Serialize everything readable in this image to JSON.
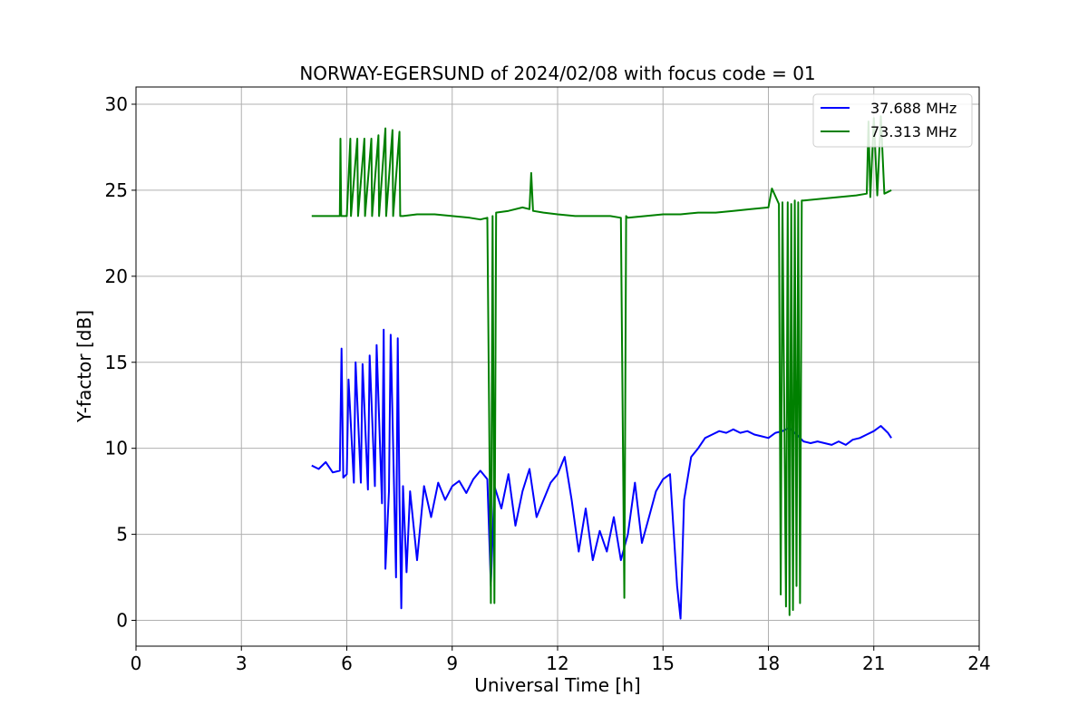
{
  "chart_data": {
    "type": "line",
    "title": "NORWAY-EGERSUND of 2024/02/08 with focus code = 01",
    "xlabel": "Universal Time [h]",
    "ylabel": "Y-factor [dB]",
    "xlim": [
      0,
      24
    ],
    "ylim": [
      -1.5,
      31
    ],
    "xticks": [
      0,
      3,
      6,
      9,
      12,
      15,
      18,
      21,
      24
    ],
    "yticks": [
      0,
      5,
      10,
      15,
      20,
      25,
      30
    ],
    "grid": true,
    "legend_position": "top-right",
    "series": [
      {
        "name": "37.688 MHz",
        "color": "#0000ff",
        "x": [
          5.0,
          5.2,
          5.4,
          5.6,
          5.8,
          5.85,
          5.9,
          6.0,
          6.05,
          6.2,
          6.25,
          6.4,
          6.45,
          6.6,
          6.65,
          6.8,
          6.85,
          7.0,
          7.05,
          7.1,
          7.2,
          7.25,
          7.4,
          7.45,
          7.5,
          7.55,
          7.6,
          7.7,
          7.8,
          8.0,
          8.2,
          8.4,
          8.6,
          8.8,
          9.0,
          9.2,
          9.4,
          9.6,
          9.8,
          10.0,
          10.1,
          10.2,
          10.4,
          10.6,
          10.8,
          11.0,
          11.2,
          11.4,
          11.6,
          11.8,
          12.0,
          12.2,
          12.4,
          12.6,
          12.8,
          13.0,
          13.2,
          13.4,
          13.6,
          13.8,
          14.0,
          14.2,
          14.4,
          14.6,
          14.8,
          15.0,
          15.2,
          15.4,
          15.5,
          15.6,
          15.8,
          16.0,
          16.2,
          16.4,
          16.6,
          16.8,
          17.0,
          17.2,
          17.4,
          17.6,
          17.8,
          18.0,
          18.2,
          18.4,
          18.6,
          18.8,
          19.0,
          19.2,
          19.4,
          19.6,
          19.8,
          20.0,
          20.2,
          20.4,
          20.6,
          20.8,
          21.0,
          21.2,
          21.4,
          21.5
        ],
        "y": [
          9.0,
          8.8,
          9.2,
          8.6,
          8.7,
          15.8,
          8.3,
          8.5,
          14.0,
          8.0,
          15.0,
          8.0,
          14.9,
          7.6,
          15.4,
          7.8,
          16.0,
          6.8,
          16.9,
          3.0,
          7.5,
          16.6,
          2.5,
          16.4,
          7.2,
          0.7,
          7.8,
          2.8,
          7.5,
          3.5,
          7.8,
          6.0,
          8.0,
          7.0,
          7.8,
          8.1,
          7.4,
          8.2,
          8.7,
          8.2,
          2.0,
          7.8,
          6.5,
          8.5,
          5.5,
          7.5,
          8.8,
          6.0,
          7.0,
          8.0,
          8.5,
          9.5,
          7.0,
          4.0,
          6.5,
          3.5,
          5.2,
          4.0,
          6.0,
          3.5,
          5.0,
          8.0,
          4.5,
          6.0,
          7.5,
          8.2,
          8.5,
          2.0,
          0.1,
          7.0,
          9.5,
          10.0,
          10.6,
          10.8,
          11.0,
          10.9,
          11.1,
          10.9,
          11.0,
          10.8,
          10.7,
          10.6,
          10.9,
          11.0,
          11.2,
          10.8,
          10.4,
          10.3,
          10.4,
          10.3,
          10.2,
          10.4,
          10.2,
          10.5,
          10.6,
          10.8,
          11.0,
          11.3,
          10.9,
          10.6
        ]
      },
      {
        "name": "73.313 MHz",
        "color": "#008000",
        "x": [
          5.0,
          5.5,
          5.8,
          5.82,
          5.84,
          6.0,
          6.1,
          6.12,
          6.3,
          6.32,
          6.5,
          6.52,
          6.7,
          6.72,
          6.9,
          6.92,
          7.1,
          7.12,
          7.3,
          7.32,
          7.5,
          7.52,
          7.6,
          8.0,
          8.5,
          9.0,
          9.5,
          9.8,
          10.0,
          10.1,
          10.15,
          10.2,
          10.25,
          10.6,
          11.0,
          11.2,
          11.25,
          11.3,
          11.6,
          12.0,
          12.5,
          13.0,
          13.5,
          13.8,
          13.9,
          13.95,
          14.0,
          14.5,
          15.0,
          15.5,
          16.0,
          16.5,
          17.0,
          17.5,
          18.0,
          18.1,
          18.3,
          18.35,
          18.4,
          18.5,
          18.55,
          18.6,
          18.65,
          18.7,
          18.75,
          18.8,
          18.85,
          18.9,
          18.95,
          19.0,
          19.5,
          20.0,
          20.5,
          20.8,
          20.85,
          20.9,
          21.0,
          21.1,
          21.2,
          21.3,
          21.4,
          21.5
        ],
        "y": [
          23.5,
          23.5,
          23.5,
          28.0,
          23.5,
          23.5,
          28.0,
          23.5,
          28.0,
          23.5,
          28.0,
          23.5,
          28.0,
          23.5,
          28.2,
          23.5,
          28.6,
          23.5,
          28.5,
          23.5,
          28.4,
          23.5,
          23.5,
          23.6,
          23.6,
          23.5,
          23.4,
          23.3,
          23.4,
          1.0,
          23.5,
          1.0,
          23.7,
          23.8,
          24.0,
          23.9,
          26.0,
          23.8,
          23.7,
          23.6,
          23.5,
          23.5,
          23.5,
          23.4,
          1.3,
          23.5,
          23.4,
          23.5,
          23.6,
          23.6,
          23.7,
          23.7,
          23.8,
          23.9,
          24.0,
          25.1,
          24.2,
          1.5,
          24.3,
          0.8,
          24.3,
          0.3,
          24.2,
          0.6,
          24.4,
          2.0,
          24.3,
          1.0,
          24.4,
          24.4,
          24.5,
          24.6,
          24.7,
          24.8,
          29.0,
          24.6,
          29.2,
          24.7,
          29.3,
          24.8,
          24.9,
          25.0
        ]
      }
    ]
  }
}
